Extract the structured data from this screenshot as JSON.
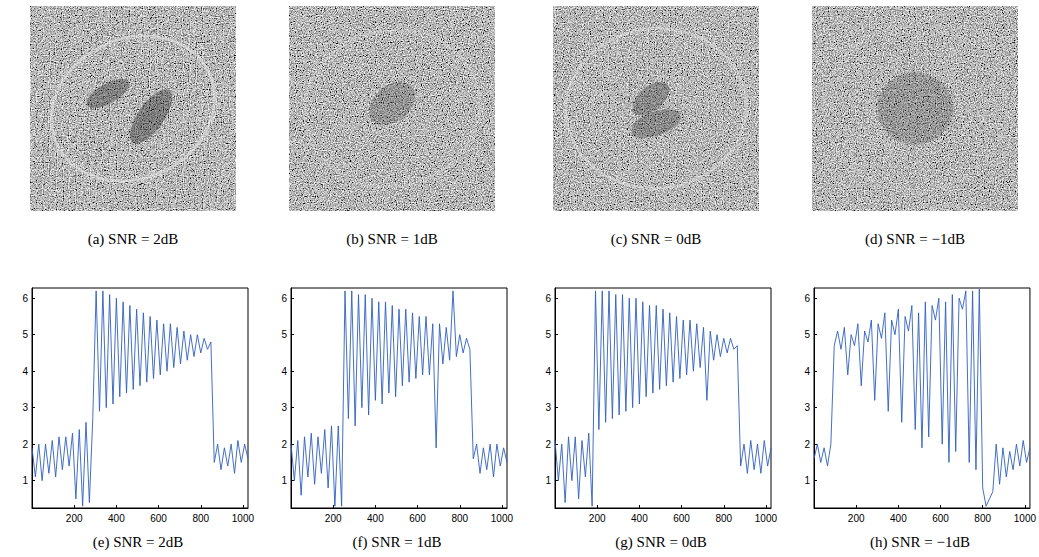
{
  "images": [
    {
      "caption": "(a) SNR = 2dB"
    },
    {
      "caption": "(b) SNR = 1dB"
    },
    {
      "caption": "(c) SNR = 0dB"
    },
    {
      "caption": "(d) SNR = −1dB"
    }
  ],
  "chart_data": [
    {
      "type": "line",
      "title": "(e) SNR = 2dB",
      "color": "#2f5fbf",
      "grid": false,
      "xlim": [
        0,
        1024
      ],
      "xticks": [
        200,
        400,
        600,
        800,
        1000
      ],
      "ylim": [
        0.25,
        6.28
      ],
      "yticks": [
        1,
        2,
        3,
        4,
        5,
        6
      ],
      "x": [
        0,
        16,
        32,
        48,
        64,
        80,
        96,
        112,
        128,
        144,
        160,
        176,
        192,
        208,
        224,
        240,
        256,
        272,
        288,
        304,
        320,
        336,
        352,
        368,
        384,
        400,
        416,
        432,
        448,
        464,
        480,
        496,
        512,
        528,
        544,
        560,
        576,
        592,
        608,
        624,
        640,
        656,
        672,
        688,
        704,
        720,
        736,
        752,
        768,
        784,
        800,
        816,
        832,
        848,
        864,
        880,
        896,
        912,
        928,
        944,
        960,
        976,
        992,
        1008,
        1024
      ],
      "values": [
        1.9,
        1.1,
        2.0,
        1.0,
        2.0,
        1.2,
        2.1,
        1.1,
        2.2,
        1.3,
        2.2,
        1.4,
        2.3,
        0.5,
        2.4,
        0.3,
        2.6,
        0.4,
        2.7,
        6.2,
        2.9,
        6.2,
        3.0,
        6.1,
        3.1,
        6.0,
        3.3,
        5.9,
        3.4,
        5.8,
        3.5,
        5.7,
        3.6,
        5.6,
        3.7,
        5.5,
        3.8,
        5.4,
        3.9,
        5.3,
        4.0,
        5.3,
        4.1,
        5.2,
        4.2,
        5.1,
        4.3,
        5.0,
        4.4,
        5.0,
        4.5,
        4.9,
        4.6,
        4.8,
        1.5,
        2.0,
        1.3,
        1.9,
        1.4,
        2.0,
        1.2,
        2.1,
        1.5,
        2.0,
        1.6
      ]
    },
    {
      "type": "line",
      "title": "(f) SNR = 1dB",
      "color": "#2f5fbf",
      "grid": false,
      "xlim": [
        0,
        1024
      ],
      "xticks": [
        200,
        400,
        600,
        800,
        1000
      ],
      "ylim": [
        0.25,
        6.28
      ],
      "yticks": [
        1,
        2,
        3,
        4,
        5,
        6
      ],
      "x": [
        0,
        16,
        32,
        48,
        64,
        80,
        96,
        112,
        128,
        144,
        160,
        176,
        192,
        208,
        224,
        240,
        256,
        272,
        288,
        304,
        320,
        336,
        352,
        368,
        384,
        400,
        416,
        432,
        448,
        464,
        480,
        496,
        512,
        528,
        544,
        560,
        576,
        592,
        608,
        624,
        640,
        656,
        672,
        688,
        704,
        720,
        736,
        752,
        768,
        784,
        800,
        816,
        832,
        848,
        864,
        880,
        896,
        912,
        928,
        944,
        960,
        976,
        992,
        1008,
        1024
      ],
      "values": [
        2.0,
        1.0,
        2.1,
        0.6,
        2.2,
        1.1,
        2.3,
        0.9,
        2.2,
        1.2,
        2.4,
        0.8,
        2.5,
        0.3,
        2.5,
        0.3,
        6.2,
        2.7,
        6.2,
        2.5,
        6.1,
        3.0,
        6.1,
        2.8,
        6.0,
        3.2,
        5.9,
        3.1,
        5.9,
        3.4,
        5.8,
        3.3,
        5.7,
        3.6,
        5.7,
        3.7,
        5.6,
        3.8,
        5.5,
        3.9,
        5.5,
        3.9,
        5.3,
        1.9,
        5.3,
        4.2,
        5.2,
        4.3,
        6.2,
        4.4,
        5.0,
        4.5,
        4.9,
        4.6,
        1.6,
        2.0,
        1.2,
        1.9,
        1.3,
        2.0,
        1.1,
        2.0,
        1.4,
        1.9,
        1.5
      ]
    },
    {
      "type": "line",
      "title": "(g) SNR = 0dB",
      "color": "#2f5fbf",
      "grid": false,
      "xlim": [
        0,
        1024
      ],
      "xticks": [
        200,
        400,
        600,
        800,
        1000
      ],
      "ylim": [
        0.25,
        6.28
      ],
      "yticks": [
        1,
        2,
        3,
        4,
        5,
        6
      ],
      "x": [
        0,
        16,
        32,
        48,
        64,
        80,
        96,
        112,
        128,
        144,
        160,
        176,
        192,
        208,
        224,
        240,
        256,
        272,
        288,
        304,
        320,
        336,
        352,
        368,
        384,
        400,
        416,
        432,
        448,
        464,
        480,
        496,
        512,
        528,
        544,
        560,
        576,
        592,
        608,
        624,
        640,
        656,
        672,
        688,
        704,
        720,
        736,
        752,
        768,
        784,
        800,
        816,
        832,
        848,
        864,
        880,
        896,
        912,
        928,
        944,
        960,
        976,
        992,
        1008,
        1024
      ],
      "values": [
        2.1,
        1.0,
        2.0,
        0.4,
        2.2,
        1.0,
        2.2,
        0.5,
        2.1,
        1.1,
        2.3,
        0.3,
        6.2,
        2.4,
        6.2,
        2.6,
        6.2,
        2.7,
        6.1,
        2.8,
        6.1,
        2.9,
        6.0,
        3.0,
        6.0,
        3.1,
        5.9,
        3.3,
        5.8,
        3.4,
        5.8,
        3.5,
        5.7,
        3.6,
        5.6,
        3.7,
        5.5,
        3.8,
        5.4,
        3.9,
        5.4,
        4.0,
        5.3,
        4.1,
        5.2,
        3.2,
        5.1,
        4.3,
        5.0,
        4.4,
        4.9,
        4.5,
        4.9,
        4.6,
        4.7,
        1.4,
        2.0,
        1.2,
        2.1,
        1.3,
        2.0,
        1.2,
        2.1,
        1.4,
        1.9
      ]
    },
    {
      "type": "line",
      "title": "(h) SNR = −1dB",
      "color": "#2f5fbf",
      "grid": false,
      "xlim": [
        0,
        1024
      ],
      "xticks": [
        200,
        400,
        600,
        800,
        1000
      ],
      "ylim": [
        0.25,
        6.28
      ],
      "yticks": [
        1,
        2,
        3,
        4,
        5,
        6
      ],
      "x": [
        0,
        16,
        32,
        48,
        64,
        80,
        96,
        112,
        128,
        144,
        160,
        176,
        192,
        208,
        224,
        240,
        256,
        272,
        288,
        304,
        320,
        336,
        352,
        368,
        384,
        400,
        416,
        432,
        448,
        464,
        480,
        496,
        512,
        528,
        544,
        560,
        576,
        592,
        608,
        624,
        640,
        656,
        672,
        688,
        704,
        720,
        736,
        752,
        768,
        784,
        800,
        816,
        832,
        848,
        864,
        880,
        896,
        912,
        928,
        944,
        960,
        976,
        992,
        1008,
        1024
      ],
      "values": [
        1.6,
        2.0,
        1.5,
        1.9,
        1.4,
        2.0,
        4.7,
        5.1,
        4.6,
        5.2,
        3.9,
        5.0,
        4.7,
        5.3,
        3.6,
        5.1,
        4.8,
        5.4,
        3.2,
        5.3,
        4.9,
        5.6,
        2.9,
        5.4,
        5.0,
        5.7,
        2.6,
        5.5,
        5.1,
        5.8,
        2.4,
        5.6,
        1.9,
        5.9,
        2.2,
        5.8,
        5.4,
        6.0,
        2.0,
        5.9,
        1.5,
        6.1,
        1.8,
        6.0,
        5.7,
        6.2,
        1.5,
        6.2,
        1.3,
        6.25,
        0.8,
        0.3,
        0.5,
        0.7,
        2.0,
        0.9,
        1.9,
        1.1,
        1.8,
        1.3,
        2.0,
        1.4,
        2.1,
        1.5,
        1.9
      ]
    }
  ]
}
